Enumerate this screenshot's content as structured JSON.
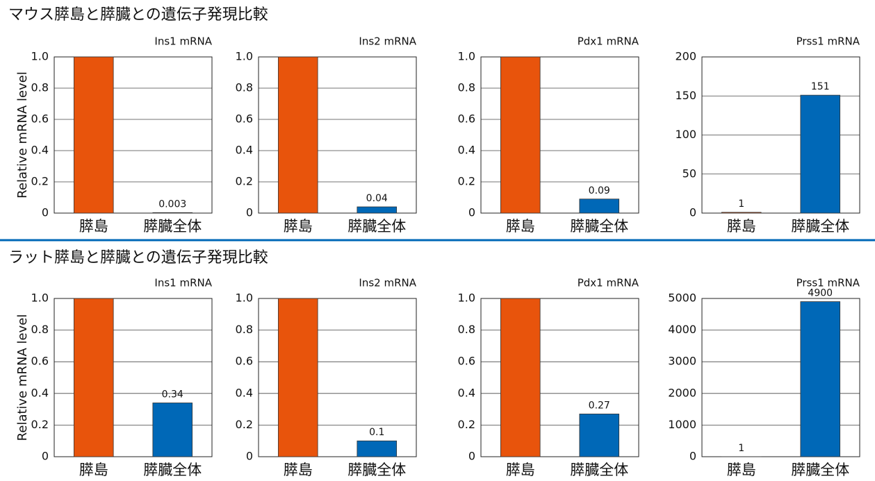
{
  "sections": [
    {
      "title": "マウス膵島と膵臓との遺伝子発現比較"
    },
    {
      "title": "ラット膵島と膵臓との遺伝子発現比較"
    }
  ],
  "chart_data": [
    {
      "type": "bar",
      "title": "Ins1 mRNA",
      "ylabel": "Relative mRNA level",
      "categories": [
        "膵島",
        "膵臓全体"
      ],
      "values": [
        1,
        0.003
      ],
      "value_labels": [
        null,
        "0.003"
      ],
      "colors": [
        "#e8540c",
        "#0068b7"
      ],
      "ylim": [
        0,
        1
      ],
      "yticks": [
        0,
        0.2,
        0.4,
        0.6,
        0.8,
        {
          "value": 1,
          "label": "1.0"
        }
      ],
      "grid": true
    },
    {
      "type": "bar",
      "title": "Ins2 mRNA",
      "categories": [
        "膵島",
        "膵臓全体"
      ],
      "values": [
        1,
        0.04
      ],
      "value_labels": [
        null,
        "0.04"
      ],
      "colors": [
        "#e8540c",
        "#0068b7"
      ],
      "ylim": [
        0,
        1
      ],
      "yticks": [
        0,
        0.2,
        0.4,
        0.6,
        0.8,
        {
          "value": 1,
          "label": "1.0"
        }
      ],
      "grid": true
    },
    {
      "type": "bar",
      "title": "Pdx1 mRNA",
      "categories": [
        "膵島",
        "膵臓全体"
      ],
      "values": [
        1,
        0.09
      ],
      "value_labels": [
        null,
        "0.09"
      ],
      "colors": [
        "#e8540c",
        "#0068b7"
      ],
      "ylim": [
        0,
        1
      ],
      "yticks": [
        0,
        0.2,
        0.4,
        0.6,
        0.8,
        {
          "value": 1,
          "label": "1.0"
        }
      ],
      "grid": true
    },
    {
      "type": "bar",
      "title": "Prss1 mRNA",
      "categories": [
        "膵島",
        "膵臓全体"
      ],
      "values": [
        1,
        151
      ],
      "value_labels": [
        "1",
        "151"
      ],
      "colors": [
        "#e8540c",
        "#0068b7"
      ],
      "ylim": [
        0,
        200
      ],
      "yticks": [
        0,
        50,
        100,
        150,
        200
      ],
      "grid": true
    },
    {
      "type": "bar",
      "title": "Ins1 mRNA",
      "ylabel": "Relative mRNA level",
      "categories": [
        "膵島",
        "膵臓全体"
      ],
      "values": [
        1,
        0.34
      ],
      "value_labels": [
        null,
        "0.34"
      ],
      "colors": [
        "#e8540c",
        "#0068b7"
      ],
      "ylim": [
        0,
        1
      ],
      "yticks": [
        0,
        0.2,
        0.4,
        0.6,
        0.8,
        {
          "value": 1,
          "label": "1.0"
        }
      ],
      "grid": true
    },
    {
      "type": "bar",
      "title": "Ins2 mRNA",
      "categories": [
        "膵島",
        "膵臓全体"
      ],
      "values": [
        1,
        0.1
      ],
      "value_labels": [
        null,
        "0.1"
      ],
      "colors": [
        "#e8540c",
        "#0068b7"
      ],
      "ylim": [
        0,
        1
      ],
      "yticks": [
        0,
        0.2,
        0.4,
        0.6,
        0.8,
        {
          "value": 1,
          "label": "1.0"
        }
      ],
      "grid": true
    },
    {
      "type": "bar",
      "title": "Pdx1 mRNA",
      "categories": [
        "膵島",
        "膵臓全体"
      ],
      "values": [
        1,
        0.27
      ],
      "value_labels": [
        null,
        "0.27"
      ],
      "colors": [
        "#e8540c",
        "#0068b7"
      ],
      "ylim": [
        0,
        1
      ],
      "yticks": [
        0,
        0.2,
        0.4,
        0.6,
        0.8,
        {
          "value": 1,
          "label": "1.0"
        }
      ],
      "grid": true
    },
    {
      "type": "bar",
      "title": "Prss1 mRNA",
      "categories": [
        "膵島",
        "膵臓全体"
      ],
      "values": [
        1,
        4900
      ],
      "value_labels": [
        "1",
        "4900"
      ],
      "colors": [
        "#e8540c",
        "#0068b7"
      ],
      "ylim": [
        0,
        5000
      ],
      "yticks": [
        0,
        1000,
        2000,
        3000,
        4000,
        5000
      ],
      "grid": true
    }
  ]
}
